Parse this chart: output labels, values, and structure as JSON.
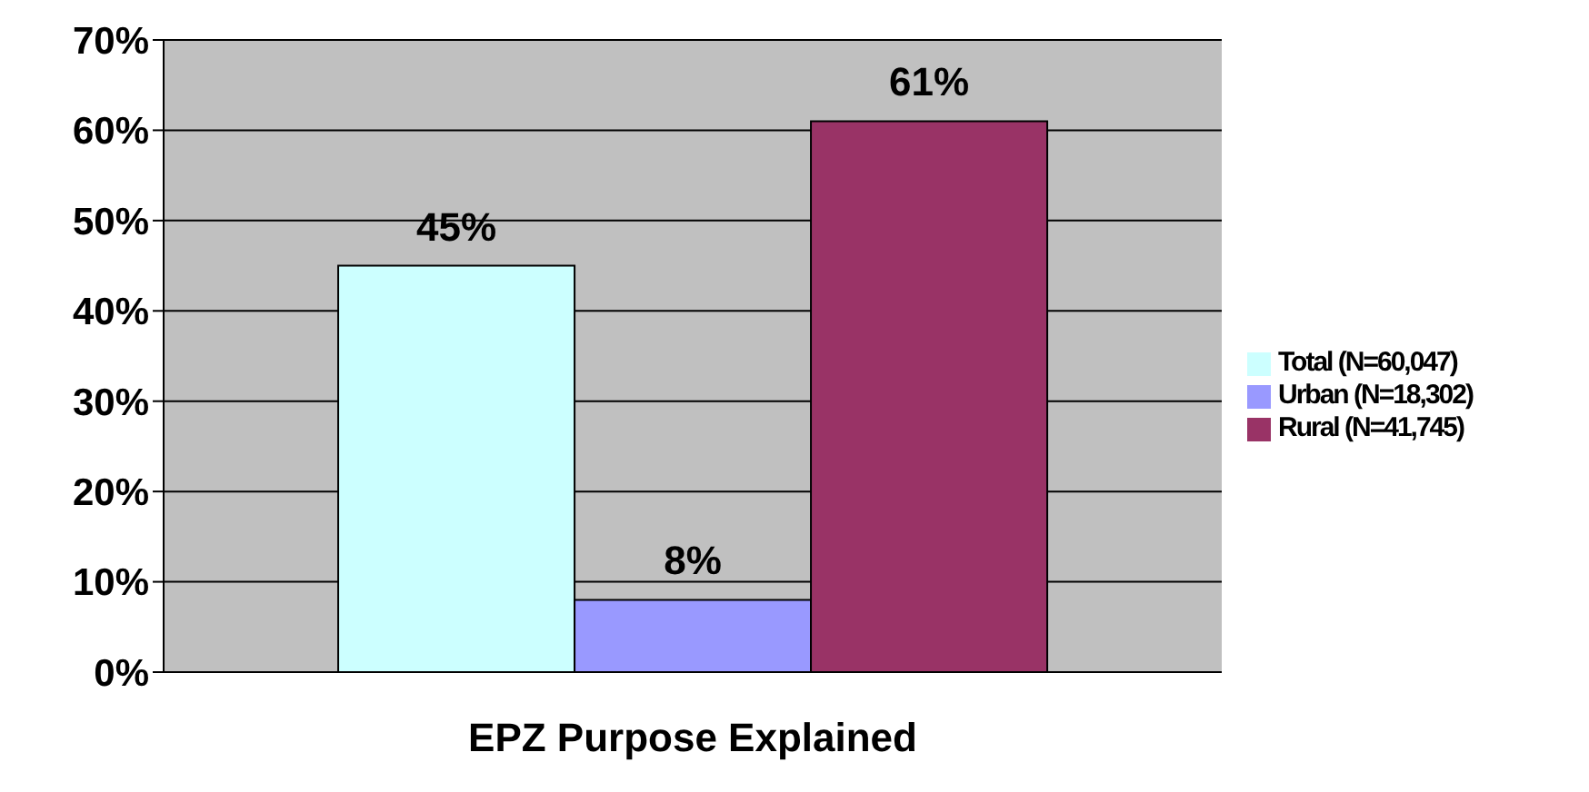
{
  "chart_data": {
    "type": "bar",
    "categories": [
      "EPZ Purpose Explained"
    ],
    "series": [
      {
        "name": "Total (N=60,047)",
        "color": "#ccffff",
        "values": [
          45
        ],
        "value_labels": [
          "45%"
        ]
      },
      {
        "name": "Urban (N=18,302)",
        "color": "#9999ff",
        "values": [
          8
        ],
        "value_labels": [
          "8%"
        ]
      },
      {
        "name": "Rural (N=41,745)",
        "color": "#993366",
        "values": [
          61
        ],
        "value_labels": [
          "61%"
        ]
      }
    ],
    "ylim": [
      0,
      70
    ],
    "yticks": [
      {
        "value": 0,
        "label": "0%"
      },
      {
        "value": 10,
        "label": "10%"
      },
      {
        "value": 20,
        "label": "20%"
      },
      {
        "value": 30,
        "label": "30%"
      },
      {
        "value": 40,
        "label": "40%"
      },
      {
        "value": 50,
        "label": "50%"
      },
      {
        "value": 60,
        "label": "60%"
      },
      {
        "value": 70,
        "label": "70%"
      }
    ],
    "grid": "y",
    "legend": "right"
  }
}
